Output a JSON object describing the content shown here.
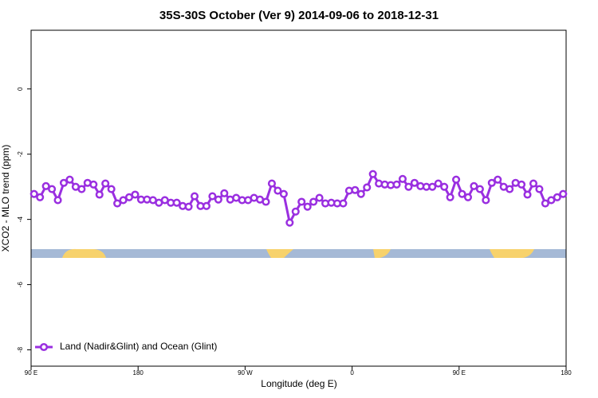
{
  "chart_data": {
    "type": "line",
    "title": "35S-30S October (Ver 9)   2014-09-06 to 2018-12-31",
    "xlabel": "Longitude (deg E)",
    "ylabel": "XCO2 - MLO trend (ppm)",
    "xlim": [
      90,
      540
    ],
    "ylim": [
      -8.5,
      1.8
    ],
    "xticks": [
      {
        "value": 90,
        "label": "90 E"
      },
      180,
      {
        "value": 270,
        "label": "90 W"
      },
      {
        "value": 360,
        "label": "0"
      },
      {
        "value": 450,
        "label": "90 E"
      },
      {
        "value": 540,
        "label": "180"
      }
    ],
    "yticks": [
      0,
      -2,
      -4,
      -6,
      -8
    ],
    "legend": "lower left",
    "x": [
      92.5,
      97.5,
      102.5,
      107.5,
      112.5,
      117.5,
      122.5,
      127.5,
      132.5,
      137.5,
      142.5,
      147.5,
      152.5,
      157.5,
      162.5,
      167.5,
      172.5,
      177.5,
      182.5,
      187.5,
      192.5,
      197.5,
      202.5,
      207.5,
      212.5,
      217.5,
      222.5,
      227.5,
      232.5,
      237.5,
      242.5,
      247.5,
      252.5,
      257.5,
      262.5,
      267.5,
      272.5,
      277.5,
      282.5,
      287.5,
      292.5,
      297.5,
      302.5,
      307.5,
      312.5,
      317.5,
      322.5,
      327.5,
      332.5,
      337.5,
      342.5,
      347.5,
      352.5,
      357.5,
      362.5,
      367.5,
      372.5,
      377.5,
      382.5,
      387.5,
      392.5,
      397.5,
      402.5,
      407.5,
      412.5,
      417.5,
      422.5,
      427.5,
      432.5,
      437.5,
      442.5,
      447.5,
      452.5,
      457.5,
      462.5,
      467.5,
      472.5,
      477.5,
      482.5,
      487.5,
      492.5,
      497.5,
      502.5,
      507.5,
      512.5,
      517.5,
      522.5,
      527.5,
      532.5,
      537.5
    ],
    "series": [
      {
        "name": "Land (Nadir&Glint) and Ocean (Glint)",
        "color": "#9a2fe0",
        "values": [
          -3.22,
          -3.32,
          -2.98,
          -3.07,
          -3.41,
          -2.88,
          -2.78,
          -3.0,
          -3.07,
          -2.88,
          -2.93,
          -3.24,
          -2.9,
          -3.07,
          -3.51,
          -3.41,
          -3.32,
          -3.24,
          -3.39,
          -3.39,
          -3.41,
          -3.49,
          -3.41,
          -3.49,
          -3.49,
          -3.59,
          -3.61,
          -3.29,
          -3.59,
          -3.59,
          -3.29,
          -3.39,
          -3.2,
          -3.39,
          -3.34,
          -3.41,
          -3.41,
          -3.34,
          -3.39,
          -3.46,
          -2.9,
          -3.12,
          -3.22,
          -4.1,
          -3.76,
          -3.46,
          -3.61,
          -3.46,
          -3.34,
          -3.51,
          -3.49,
          -3.51,
          -3.51,
          -3.12,
          -3.1,
          -3.22,
          -3.02,
          -2.61,
          -2.9,
          -2.93,
          -2.95,
          -2.93,
          -2.76,
          -3.0,
          -2.88,
          -2.98,
          -3.0,
          -3.0,
          -2.9,
          -3.0,
          -3.32,
          -2.78,
          -3.22,
          -3.32,
          -2.98,
          -3.07,
          -3.41,
          -2.88,
          -2.78,
          -3.0,
          -3.07,
          -2.88,
          -2.93,
          -3.24,
          -2.9,
          -3.07,
          -3.51,
          -3.41,
          -3.32,
          -3.22
        ]
      }
    ]
  }
}
